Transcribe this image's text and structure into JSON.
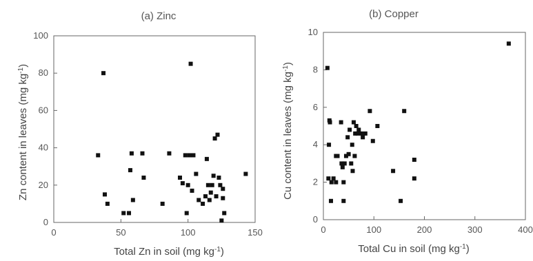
{
  "chart_data": [
    {
      "type": "scatter",
      "title": "(a) Zinc",
      "xlabel_main": "Total Zn in soil (mg kg",
      "xlabel_sup": "-1",
      "xlabel_end": ")",
      "ylabel_main": "Zn content in leaves (mg kg",
      "ylabel_sup": "-1",
      "ylabel_end": ")",
      "xlim": [
        0,
        150
      ],
      "ylim": [
        0,
        100
      ],
      "xticks": [
        "0",
        "50",
        "100",
        "150"
      ],
      "yticks": [
        "0",
        "20",
        "40",
        "60",
        "80",
        "100"
      ],
      "grid": false,
      "points": [
        [
          33,
          36
        ],
        [
          37,
          80
        ],
        [
          38,
          15
        ],
        [
          40,
          10
        ],
        [
          52,
          5
        ],
        [
          56,
          5
        ],
        [
          57,
          28
        ],
        [
          58,
          37
        ],
        [
          59,
          12
        ],
        [
          66,
          37
        ],
        [
          67,
          24
        ],
        [
          81,
          10
        ],
        [
          86,
          37
        ],
        [
          94,
          24
        ],
        [
          96,
          21
        ],
        [
          98,
          36
        ],
        [
          99,
          5
        ],
        [
          100,
          20
        ],
        [
          101,
          36
        ],
        [
          102,
          85
        ],
        [
          103,
          17
        ],
        [
          104,
          36
        ],
        [
          106,
          26
        ],
        [
          108,
          12
        ],
        [
          111,
          10
        ],
        [
          113,
          14
        ],
        [
          114,
          34
        ],
        [
          115,
          20
        ],
        [
          116,
          12
        ],
        [
          117,
          16
        ],
        [
          118,
          20
        ],
        [
          119,
          25
        ],
        [
          120,
          45
        ],
        [
          121,
          14
        ],
        [
          122,
          47
        ],
        [
          123,
          24
        ],
        [
          124,
          20
        ],
        [
          125,
          1
        ],
        [
          126,
          13
        ],
        [
          126,
          18
        ],
        [
          127,
          5
        ],
        [
          143,
          26
        ]
      ]
    },
    {
      "type": "scatter",
      "title": "(b) Copper",
      "xlabel_main": "Total Cu in soil (mg kg",
      "xlabel_sup": "-1",
      "xlabel_end": ")",
      "ylabel_main": "Cu content in leaves (mg kg",
      "ylabel_sup": "-1",
      "ylabel_end": ")",
      "xlim": [
        0,
        400
      ],
      "ylim": [
        0,
        10
      ],
      "xticks": [
        "0",
        "100",
        "200",
        "300",
        "400"
      ],
      "yticks": [
        "0",
        "2",
        "4",
        "6",
        "8",
        "10"
      ],
      "grid": false,
      "points": [
        [
          8,
          8.1
        ],
        [
          10,
          2.2
        ],
        [
          11,
          4.0
        ],
        [
          12,
          5.3
        ],
        [
          13,
          5.2
        ],
        [
          15,
          1.0
        ],
        [
          16,
          2.0
        ],
        [
          20,
          2.2
        ],
        [
          25,
          2.0
        ],
        [
          25,
          3.4
        ],
        [
          28,
          3.4
        ],
        [
          35,
          5.2
        ],
        [
          36,
          3.0
        ],
        [
          38,
          2.8
        ],
        [
          40,
          1.0
        ],
        [
          40,
          2.0
        ],
        [
          42,
          3.0
        ],
        [
          45,
          3.4
        ],
        [
          48,
          4.4
        ],
        [
          50,
          3.5
        ],
        [
          52,
          4.8
        ],
        [
          55,
          3.0
        ],
        [
          57,
          4.0
        ],
        [
          58,
          2.6
        ],
        [
          60,
          5.2
        ],
        [
          62,
          3.4
        ],
        [
          63,
          4.6
        ],
        [
          65,
          5.0
        ],
        [
          68,
          4.6
        ],
        [
          70,
          4.8
        ],
        [
          75,
          4.6
        ],
        [
          78,
          4.4
        ],
        [
          83,
          4.6
        ],
        [
          92,
          5.8
        ],
        [
          98,
          4.2
        ],
        [
          107,
          5.0
        ],
        [
          138,
          2.6
        ],
        [
          153,
          1.0
        ],
        [
          160,
          5.8
        ],
        [
          180,
          2.2
        ],
        [
          180,
          3.2
        ],
        [
          367,
          9.4
        ]
      ]
    }
  ]
}
